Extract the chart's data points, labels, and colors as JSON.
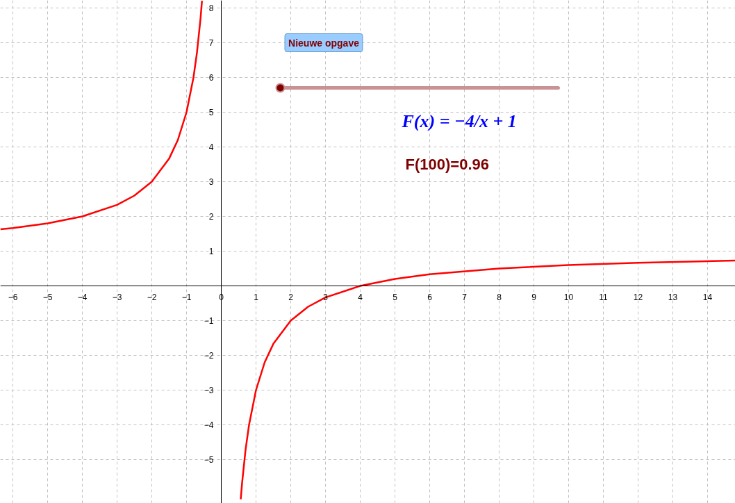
{
  "chart_data": {
    "type": "line",
    "series": [
      {
        "color": "#ff0000",
        "x": [
          -6.36,
          -6,
          -5,
          -4,
          -3,
          -2.5,
          -2,
          -1.5,
          -1.25,
          -1,
          -0.8,
          -0.7,
          -0.6,
          -0.555
        ],
        "values": [
          1.629,
          1.667,
          1.8,
          2,
          2.333,
          2.6,
          3,
          3.667,
          4.2,
          5,
          6,
          6.714,
          7.667,
          8.207
        ]
      },
      {
        "color": "#ff0000",
        "x": [
          0.56,
          0.6,
          0.7,
          0.8,
          1,
          1.25,
          1.5,
          2,
          2.5,
          3,
          4,
          5,
          6,
          8,
          10,
          12,
          14.8
        ],
        "values": [
          -6.143,
          -5.667,
          -4.714,
          -4,
          -3,
          -2.2,
          -1.667,
          -1,
          -0.6,
          -0.333,
          0,
          0.2,
          0.333,
          0.5,
          0.6,
          0.667,
          0.73
        ]
      }
    ],
    "xlim": [
      -6.36,
      14.8
    ],
    "ylim": [
      -6.26,
      8.22
    ],
    "xticks": [
      -6,
      -5,
      -4,
      -3,
      -2,
      -1,
      0,
      1,
      2,
      3,
      4,
      5,
      6,
      7,
      8,
      9,
      10,
      11,
      12,
      13,
      14
    ],
    "yticks": [
      -5,
      -4,
      -3,
      -2,
      -1,
      1,
      2,
      3,
      4,
      5,
      6,
      7,
      8
    ],
    "grid": true,
    "annotations": [
      "Nieuwe opgave",
      "F(x) = −4/x + 1",
      "F(100)=0.96"
    ]
  }
}
